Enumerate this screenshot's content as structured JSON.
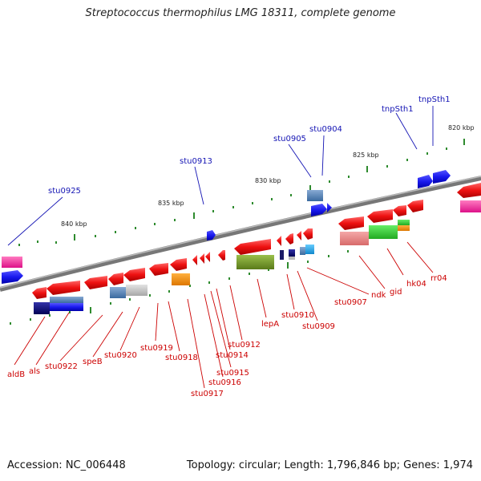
{
  "title": "Streptococcus thermophilus LMG 18311, complete genome",
  "footer": {
    "accession": "Accession: NC_006448",
    "summary": "Topology: circular; Length: 1,796,846 bp; Genes: 1,974"
  },
  "scale": {
    "unit": "kbp",
    "ticks": [
      "840 kbp",
      "835 kbp",
      "830 kbp",
      "825 kbp",
      "820 kbp"
    ]
  },
  "labels_top": [
    "stu0925",
    "stu0913",
    "stu0905",
    "stu0904",
    "tnpSth1",
    "tnpSth1"
  ],
  "labels_bottom": [
    "aldB",
    "als",
    "stu0922",
    "speB",
    "stu0920",
    "stu0919",
    "stu0918",
    "stu0917",
    "stu0916",
    "stu0915",
    "stu0914",
    "stu0912",
    "lepA",
    "stu0910",
    "stu0909",
    "stu0907",
    "ndk",
    "gid",
    "hk04",
    "rr04"
  ],
  "colors": {
    "forward_gene": "#1a1aee",
    "reverse_gene": "#ee1111",
    "backbone": "#888888",
    "top_label": "#1414b4",
    "bottom_label": "#cc0000",
    "tick": "#2e8b2e"
  }
}
